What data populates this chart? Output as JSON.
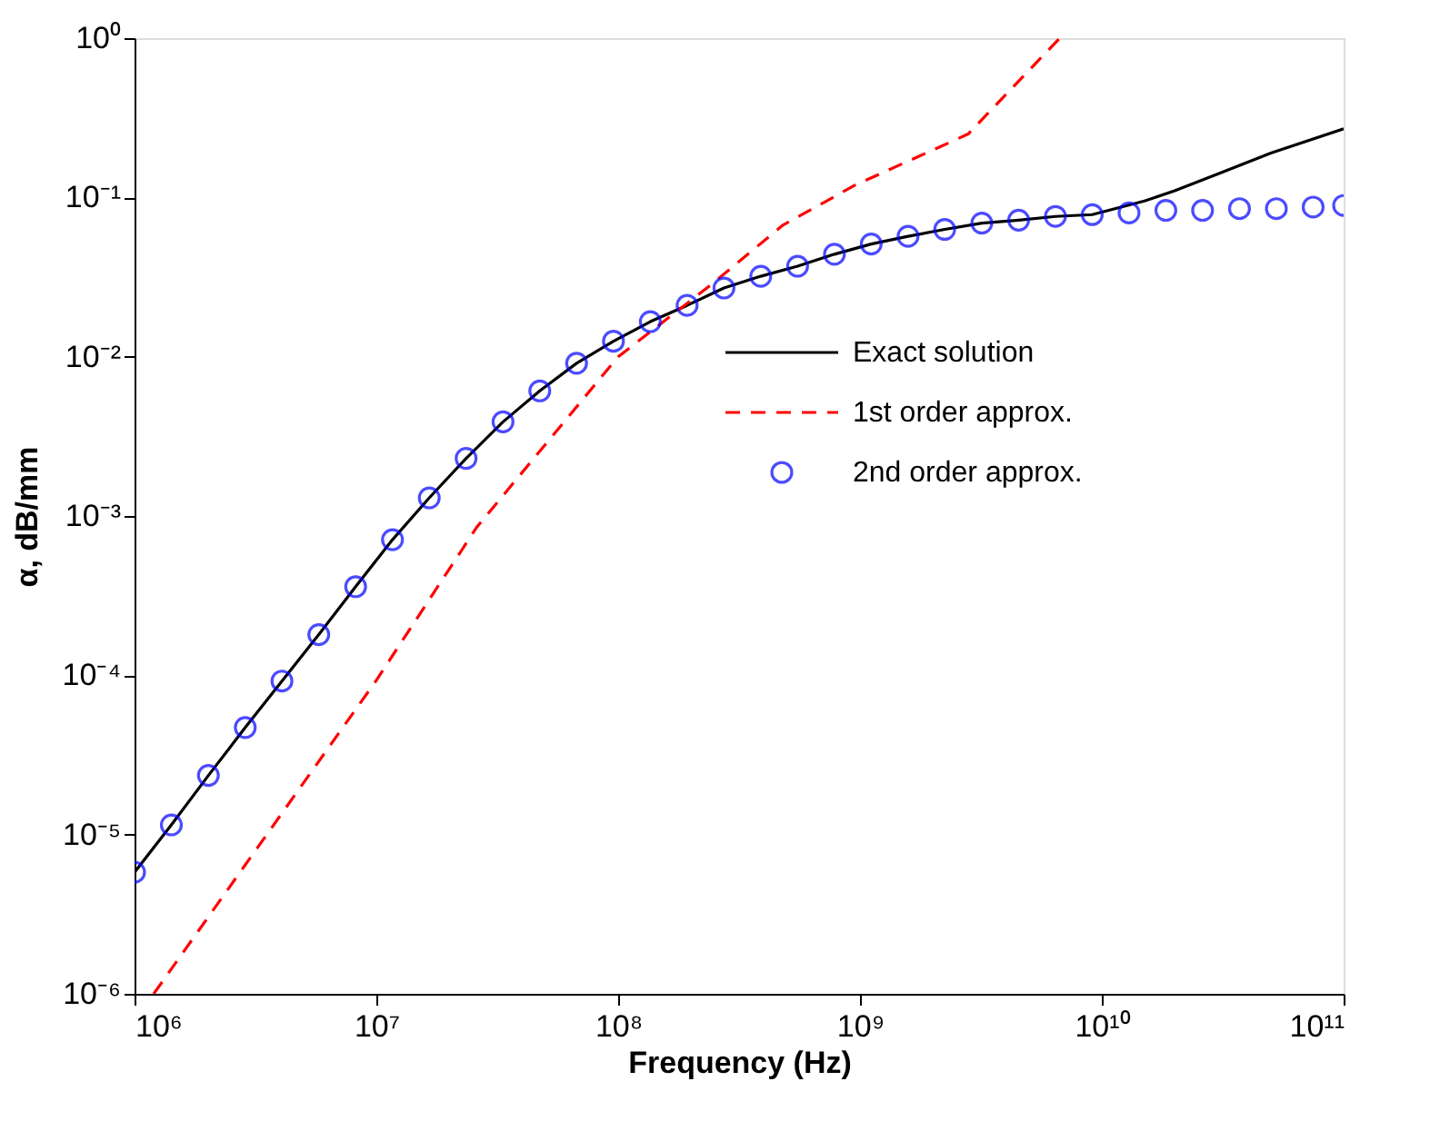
{
  "chart_data": {
    "type": "line",
    "xlabel": "Frequency (Hz)",
    "ylabel": "α, dB/mm",
    "log": "xy",
    "grid": false,
    "legend": "right",
    "xlim": [
      1000000,
      100000000000
    ],
    "ylim": [
      1e-06,
      1
    ],
    "xticks": [
      {
        "value": 1000000,
        "label": "10⁶"
      },
      {
        "value": 10000000,
        "label": "10⁷"
      },
      {
        "value": 100000000,
        "label": "10⁸"
      },
      {
        "value": 1000000000,
        "label": "10⁹"
      },
      {
        "value": 10000000000,
        "label": "10¹⁰"
      },
      {
        "value": 100000000000,
        "label": "10¹¹"
      }
    ],
    "yticks": [
      {
        "value": 1e-06,
        "label": "10⁻⁶"
      },
      {
        "value": 1e-05,
        "label": "10⁻⁵"
      },
      {
        "value": 0.0001,
        "label": "10⁻⁴"
      },
      {
        "value": 0.001,
        "label": "10⁻³"
      },
      {
        "value": 0.01,
        "label": "10⁻²"
      },
      {
        "value": 0.1,
        "label": "10⁻¹"
      },
      {
        "value": 1,
        "label": "10⁰"
      }
    ],
    "series": [
      {
        "name": "Exact solution",
        "line_style": "solid",
        "marker": "none",
        "color": "#000000",
        "x": [
          1000000,
          1420000,
          2020000,
          2870000,
          4070000,
          5780000,
          8210000,
          11660000,
          16550000,
          23500000,
          33400000,
          47400000,
          67300000,
          95600000,
          135800000,
          192800000,
          273800000,
          388800000,
          552000000,
          784000000,
          1113000000,
          1580000000,
          2240000000,
          3190000000,
          4530000000,
          6430000000,
          9130000000,
          15000000000,
          20000000000,
          30000000000,
          50000000000,
          100000000000
        ],
        "values": [
          5.8e-06,
          1.15e-05,
          2.35e-05,
          4.7e-05,
          9.2e-05,
          0.00018,
          0.00036,
          0.00071,
          0.0013,
          0.0023,
          0.0039,
          0.0061,
          0.0091,
          0.0125,
          0.0166,
          0.021,
          0.027,
          0.032,
          0.037,
          0.044,
          0.051,
          0.057,
          0.063,
          0.069,
          0.072,
          0.076,
          0.078,
          0.095,
          0.11,
          0.14,
          0.19,
          0.27
        ]
      },
      {
        "name": "1st order approx.",
        "line_style": "dashed",
        "marker": "none",
        "color": "#ff0000",
        "x": [
          1200000,
          10000000,
          26000000,
          100000000,
          240000000,
          480000000,
          960000000,
          2800000000,
          6700000000
        ],
        "values": [
          1e-06,
          9.3e-05,
          0.00085,
          0.01,
          0.028,
          0.067,
          0.12,
          0.25,
          1
        ]
      },
      {
        "name": "2nd order approx.",
        "type": "scatter",
        "marker": "circle",
        "color": "#0000ff",
        "x": [
          1000000,
          1420000,
          2020000,
          2870000,
          4070000,
          5780000,
          8210000,
          11660000,
          16550000,
          23500000,
          33400000,
          47400000,
          67300000,
          95600000,
          135800000,
          192800000,
          273800000,
          388800000,
          552000000,
          784000000,
          1113000000,
          1580000000,
          2240000000,
          3190000000,
          4530000000,
          6430000000,
          9130000000,
          12960000000,
          18400000000,
          26100000000,
          37100000000,
          52700000000,
          74800000000,
          100000000000
        ],
        "values": [
          5.8e-06,
          1.15e-05,
          2.35e-05,
          4.7e-05,
          9.2e-05,
          0.00018,
          0.00036,
          0.00071,
          0.0013,
          0.0023,
          0.0039,
          0.0061,
          0.0091,
          0.0125,
          0.0166,
          0.021,
          0.027,
          0.032,
          0.037,
          0.044,
          0.051,
          0.057,
          0.063,
          0.069,
          0.072,
          0.076,
          0.078,
          0.08,
          0.083,
          0.083,
          0.085,
          0.085,
          0.087,
          0.089
        ]
      }
    ]
  }
}
